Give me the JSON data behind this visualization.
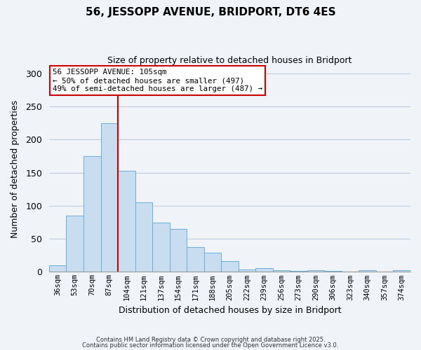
{
  "title": "56, JESSOPP AVENUE, BRIDPORT, DT6 4ES",
  "subtitle": "Size of property relative to detached houses in Bridport",
  "xlabel": "Distribution of detached houses by size in Bridport",
  "ylabel": "Number of detached properties",
  "bar_labels": [
    "36sqm",
    "53sqm",
    "70sqm",
    "87sqm",
    "104sqm",
    "121sqm",
    "137sqm",
    "154sqm",
    "171sqm",
    "188sqm",
    "205sqm",
    "222sqm",
    "239sqm",
    "256sqm",
    "273sqm",
    "290sqm",
    "306sqm",
    "323sqm",
    "340sqm",
    "357sqm",
    "374sqm"
  ],
  "bar_values": [
    10,
    85,
    175,
    225,
    153,
    105,
    75,
    65,
    37,
    29,
    16,
    4,
    6,
    2,
    1,
    2,
    1,
    0,
    2,
    0,
    2
  ],
  "bar_color": "#c8ddef",
  "bar_edge_color": "#6baed6",
  "vline_color": "#cc0000",
  "annotation_title": "56 JESSOPP AVENUE: 105sqm",
  "annotation_line1": "← 50% of detached houses are smaller (497)",
  "annotation_line2": "49% of semi-detached houses are larger (487) →",
  "annotation_box_color": "#ffffff",
  "annotation_box_edge": "#cc0000",
  "ylim": [
    0,
    310
  ],
  "yticks": [
    0,
    50,
    100,
    150,
    200,
    250,
    300
  ],
  "footer1": "Contains HM Land Registry data © Crown copyright and database right 2025.",
  "footer2": "Contains public sector information licensed under the Open Government Licence v3.0.",
  "bg_color": "#f0f4f8",
  "grid_color": "#c0cfe0"
}
